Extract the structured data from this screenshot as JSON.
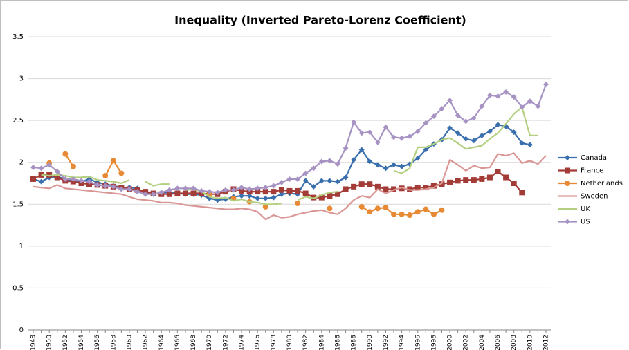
{
  "chart_data": {
    "type": "line",
    "title": "Inequality (Inverted Pareto-Lorenz Coefficient)",
    "categories": [
      "1948",
      null,
      "1950",
      null,
      "1952",
      null,
      "1954",
      null,
      "1956",
      null,
      "1958",
      null,
      "1960",
      null,
      "1962",
      null,
      "1964",
      null,
      "1966",
      null,
      "1968",
      null,
      "1970",
      null,
      "1972",
      null,
      "1974",
      null,
      "1976",
      null,
      "1978",
      null,
      "1980",
      null,
      "1982",
      null,
      "1984",
      null,
      "1986",
      null,
      "1988",
      null,
      "1990",
      null,
      "1992",
      null,
      "1994",
      null,
      "1996",
      null,
      "1998",
      null,
      "2000",
      null,
      "2002",
      null,
      "2004",
      null,
      "2006",
      null,
      "2008",
      null,
      "2010",
      null,
      "2012"
    ],
    "ylim": [
      0,
      3.5
    ],
    "yticks": [
      0,
      0.5,
      1,
      1.5,
      2,
      2.5,
      3,
      3.5
    ],
    "grid": true,
    "legend": "right",
    "series": [
      {
        "name": "Canada",
        "color": "#3a6fae",
        "marker": "diamond",
        "values": [
          1.8,
          1.77,
          1.82,
          1.83,
          1.8,
          1.78,
          1.77,
          1.8,
          1.76,
          1.74,
          1.72,
          1.7,
          1.7,
          1.69,
          1.63,
          1.62,
          1.64,
          1.64,
          1.63,
          1.62,
          1.62,
          1.61,
          1.57,
          1.55,
          1.56,
          1.59,
          1.6,
          1.6,
          1.57,
          1.57,
          1.58,
          1.62,
          1.63,
          1.62,
          1.78,
          1.71,
          1.78,
          1.78,
          1.77,
          1.82,
          2.03,
          2.15,
          2.01,
          1.97,
          1.93,
          1.97,
          1.95,
          1.98,
          2.05,
          2.15,
          2.22,
          2.27,
          2.41,
          2.35,
          2.28,
          2.26,
          2.32,
          2.37,
          2.45,
          2.43,
          2.36,
          2.23,
          2.21,
          null,
          null
        ]
      },
      {
        "name": "France",
        "color": "#a33b37",
        "marker": "square",
        "values": [
          1.8,
          1.85,
          1.85,
          1.82,
          1.78,
          1.77,
          1.75,
          1.74,
          1.73,
          1.72,
          1.71,
          1.7,
          1.68,
          1.67,
          1.65,
          1.63,
          1.62,
          1.62,
          1.63,
          1.63,
          1.63,
          1.63,
          1.62,
          1.62,
          1.65,
          1.68,
          1.66,
          1.65,
          1.65,
          1.65,
          1.65,
          1.67,
          1.66,
          1.66,
          1.63,
          1.58,
          1.58,
          1.6,
          1.62,
          1.68,
          1.71,
          1.74,
          1.74,
          1.71,
          1.68,
          1.68,
          1.69,
          1.68,
          1.7,
          1.7,
          1.72,
          1.74,
          1.76,
          1.78,
          1.79,
          1.79,
          1.8,
          1.82,
          1.89,
          1.82,
          1.75,
          1.64,
          null,
          null,
          null
        ]
      },
      {
        "name": "Netherlands",
        "color": "#e88a35",
        "marker": "circle",
        "values": [
          null,
          null,
          1.99,
          null,
          2.1,
          1.95,
          null,
          null,
          null,
          1.84,
          2.02,
          1.87,
          null,
          null,
          null,
          null,
          null,
          null,
          null,
          null,
          null,
          null,
          1.62,
          null,
          null,
          1.57,
          null,
          1.53,
          null,
          1.47,
          null,
          null,
          null,
          1.51,
          null,
          null,
          null,
          1.45,
          null,
          null,
          null,
          1.47,
          1.41,
          1.45,
          1.46,
          1.38,
          1.38,
          1.37,
          1.41,
          1.44,
          1.38,
          1.43,
          null,
          null,
          null,
          null,
          null,
          null,
          null,
          null,
          null,
          null,
          null,
          null,
          null
        ]
      },
      {
        "name": "Sweden",
        "color": "#d99694",
        "marker": "none",
        "values": [
          1.71,
          1.7,
          1.69,
          1.73,
          1.69,
          1.68,
          1.67,
          1.66,
          1.65,
          1.64,
          1.63,
          1.62,
          1.59,
          1.56,
          1.55,
          1.54,
          1.52,
          1.52,
          1.51,
          1.49,
          1.48,
          1.47,
          1.46,
          1.45,
          1.44,
          1.44,
          1.45,
          1.44,
          1.41,
          1.32,
          1.37,
          1.34,
          1.35,
          1.38,
          1.4,
          1.42,
          1.43,
          1.4,
          1.38,
          1.45,
          1.55,
          1.6,
          1.58,
          1.68,
          1.63,
          1.67,
          1.7,
          1.67,
          1.67,
          1.68,
          1.7,
          1.75,
          2.03,
          1.97,
          1.9,
          1.96,
          1.93,
          1.94,
          2.1,
          2.08,
          2.11,
          1.99,
          2.02,
          1.98,
          2.08
        ]
      },
      {
        "name": "UK",
        "color": "#b3cf7f",
        "marker": "none",
        "values": [
          null,
          1.85,
          1.84,
          1.85,
          1.84,
          1.82,
          1.82,
          1.83,
          1.79,
          1.78,
          1.77,
          1.75,
          1.79,
          null,
          1.77,
          1.72,
          1.74,
          1.74,
          null,
          1.67,
          1.68,
          1.65,
          1.59,
          1.57,
          1.58,
          1.54,
          1.56,
          1.53,
          1.52,
          1.5,
          1.5,
          1.51,
          null,
          1.55,
          1.59,
          1.57,
          1.61,
          1.64,
          1.65,
          null,
          null,
          null,
          null,
          null,
          null,
          1.9,
          1.87,
          1.93,
          2.18,
          2.18,
          2.22,
          2.27,
          2.29,
          2.23,
          2.16,
          2.18,
          2.2,
          2.28,
          2.35,
          2.46,
          2.58,
          2.66,
          2.32,
          2.32,
          null
        ]
      },
      {
        "name": "US",
        "color": "#a793c3",
        "marker": "diamond",
        "values": [
          1.94,
          1.93,
          1.97,
          1.89,
          1.8,
          1.8,
          1.78,
          1.77,
          1.73,
          1.72,
          1.71,
          1.68,
          1.68,
          1.65,
          1.62,
          1.62,
          1.64,
          1.67,
          1.69,
          1.69,
          1.69,
          1.66,
          1.65,
          1.64,
          1.67,
          1.67,
          1.7,
          1.68,
          1.69,
          1.7,
          1.72,
          1.76,
          1.8,
          1.8,
          1.87,
          1.93,
          2.01,
          2.02,
          1.98,
          2.17,
          2.48,
          2.35,
          2.36,
          2.24,
          2.42,
          2.3,
          2.29,
          2.31,
          2.37,
          2.47,
          2.55,
          2.64,
          2.74,
          2.56,
          2.49,
          2.53,
          2.67,
          2.8,
          2.79,
          2.84,
          2.78,
          2.66,
          2.73,
          2.67,
          2.93
        ]
      }
    ]
  }
}
